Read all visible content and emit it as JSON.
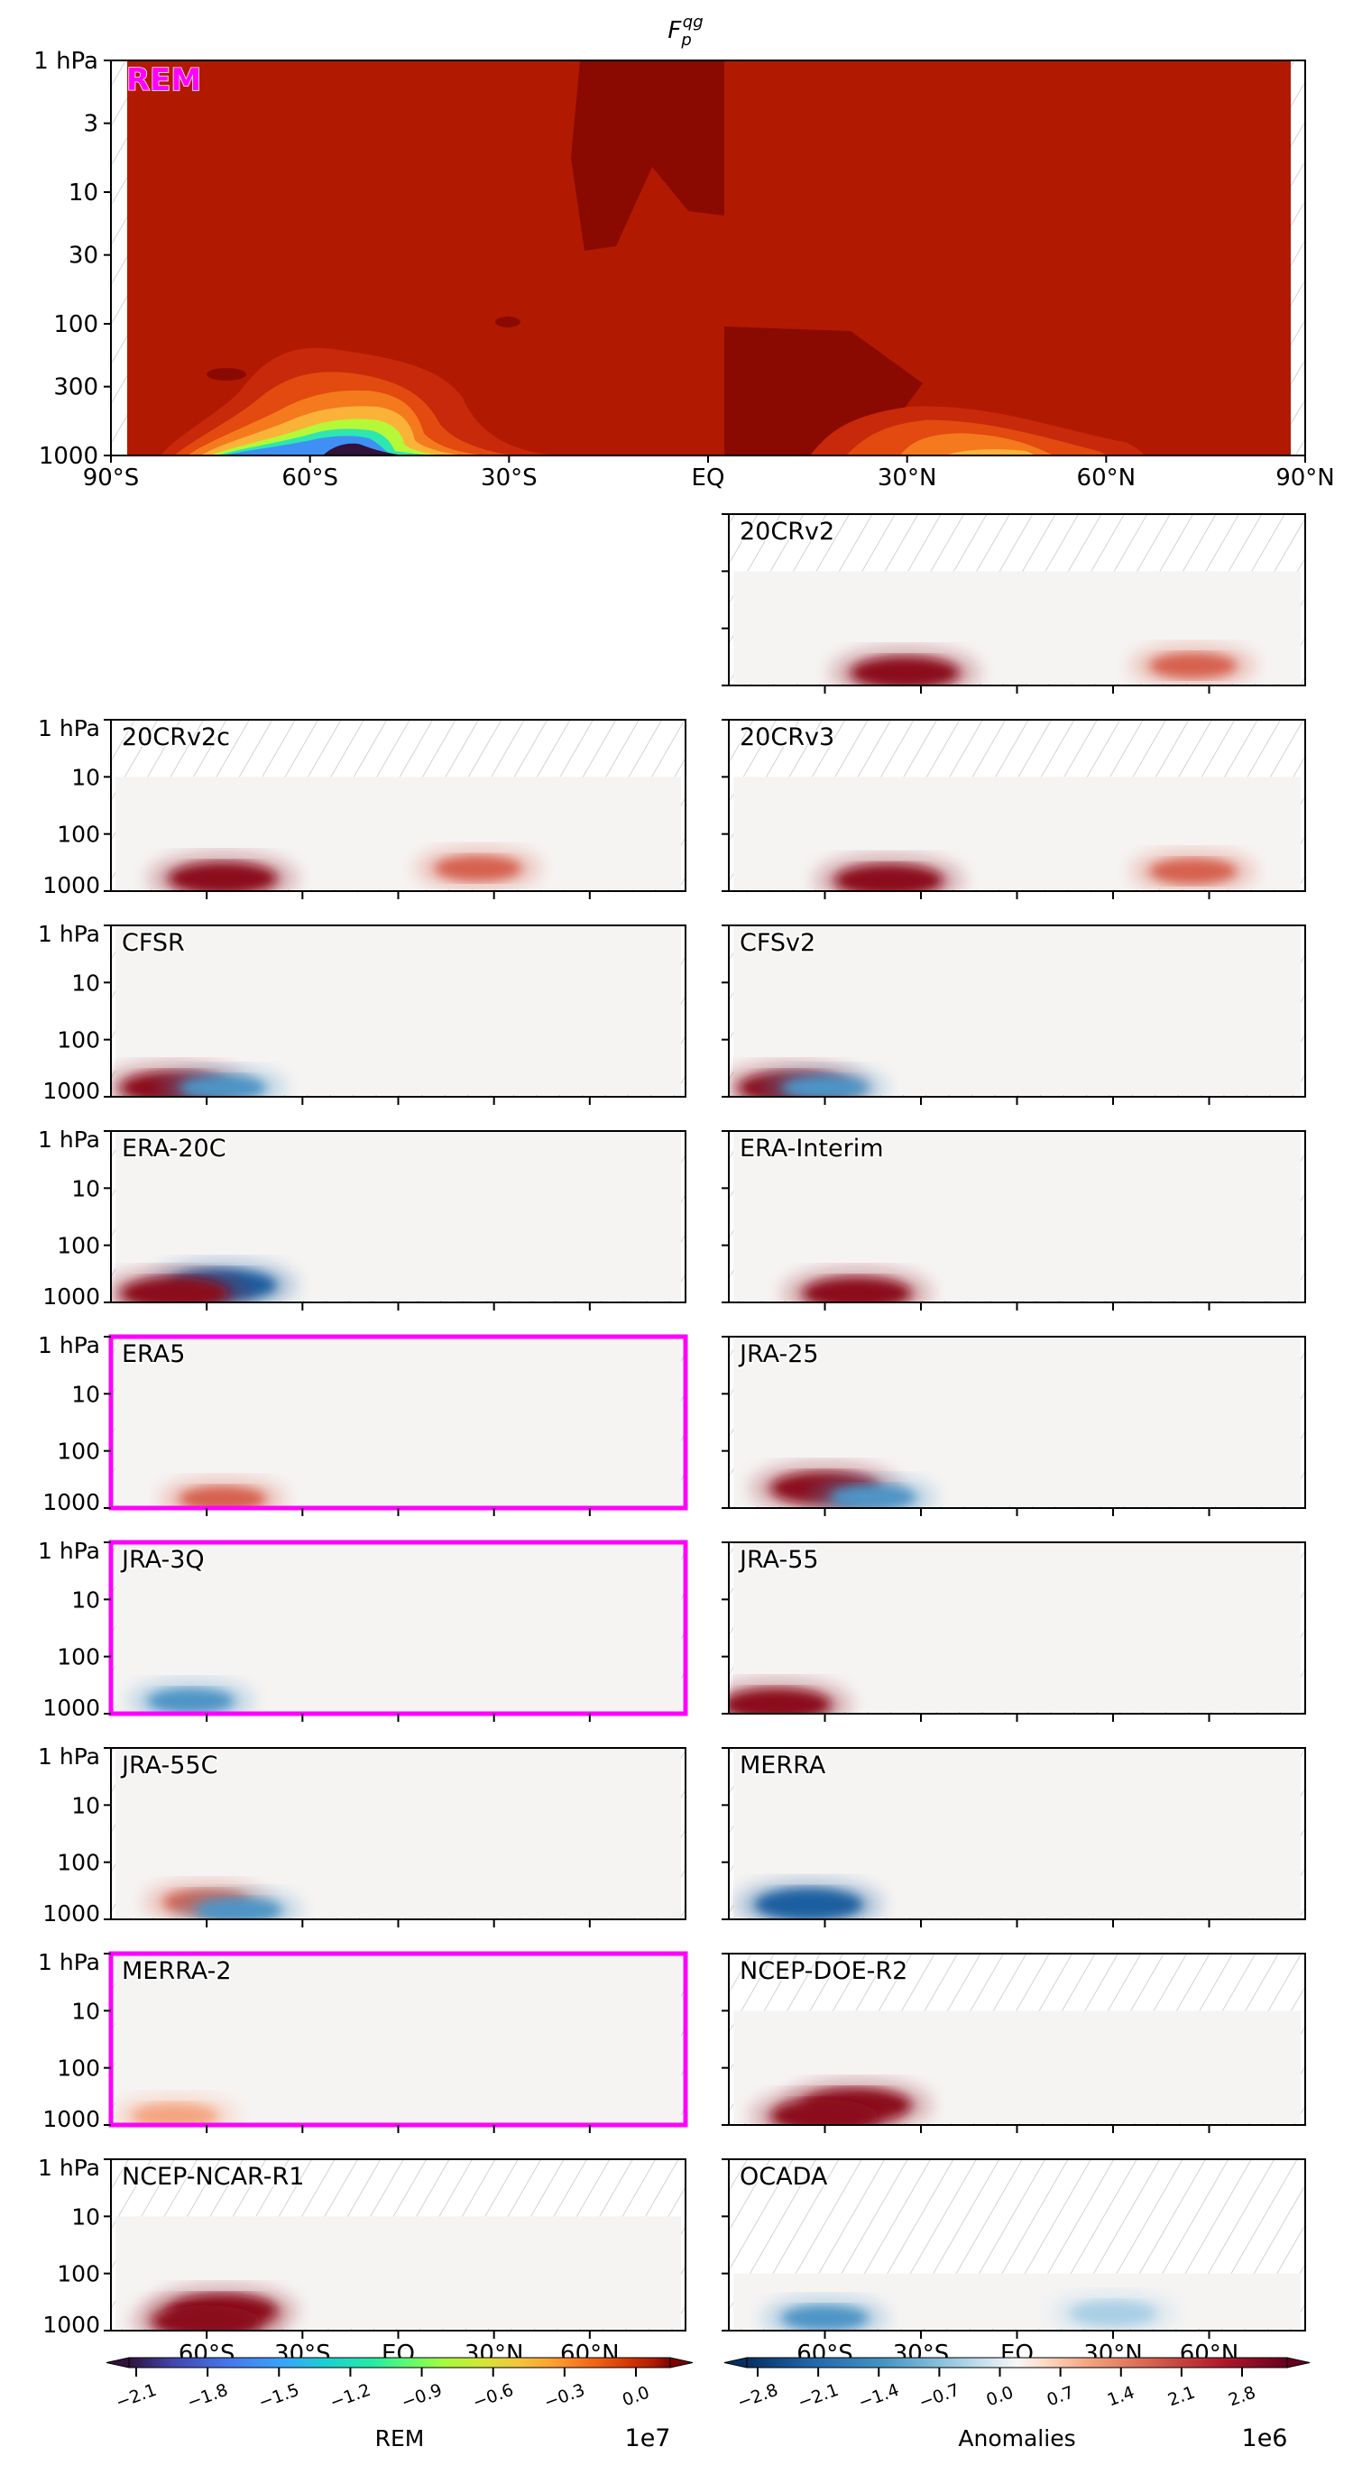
{
  "chart_data": {
    "type": "heatmap",
    "title": "F_p^qg",
    "title_main": "F",
    "title_sub": "p",
    "title_sup": "qg",
    "main_panel": {
      "label": "REM",
      "label_color": "#ff00ff",
      "xlim": [
        -90,
        90
      ],
      "ylim_hpa": [
        1000,
        1
      ],
      "x_ticks": [
        -90,
        -60,
        -30,
        0,
        30,
        60,
        90
      ],
      "x_tick_labels": [
        "90°S",
        "60°S",
        "30°S",
        "EQ",
        "30°N",
        "60°N",
        "90°N"
      ],
      "y_ticks": [
        1,
        3,
        10,
        30,
        100,
        300,
        1000
      ],
      "y_tick_labels": [
        "1 hPa",
        "3",
        "10",
        "30",
        "100",
        "300",
        "1000"
      ],
      "colormap": "turbo",
      "features": [
        {
          "desc": "strong negative minimum near surface",
          "lat": -48,
          "p": 900,
          "value": -21000000.0
        },
        {
          "desc": "secondary negative lobe",
          "lat": -70,
          "p": 850,
          "value": -15000000.0
        },
        {
          "desc": "weak NH negative lobe",
          "lat": 55,
          "p": 500,
          "value": -6000000.0
        }
      ]
    },
    "anomaly_panels": [
      {
        "name": "20CRv2",
        "highlighted": false,
        "top_hpa": 10,
        "features": [
          {
            "lat": -35,
            "p": 600,
            "sign": "positive",
            "strength": "strong"
          },
          {
            "lat": 55,
            "p": 450,
            "sign": "positive",
            "strength": "moderate"
          }
        ]
      },
      {
        "name": "20CRv2c",
        "highlighted": false,
        "top_hpa": 10,
        "features": [
          {
            "lat": -55,
            "p": 600,
            "sign": "positive",
            "strength": "strong"
          },
          {
            "lat": 25,
            "p": 400,
            "sign": "positive",
            "strength": "moderate"
          }
        ]
      },
      {
        "name": "20CRv3",
        "highlighted": false,
        "top_hpa": 10,
        "features": [
          {
            "lat": -40,
            "p": 650,
            "sign": "positive",
            "strength": "strong"
          },
          {
            "lat": 55,
            "p": 450,
            "sign": "positive",
            "strength": "moderate"
          }
        ]
      },
      {
        "name": "CFSR",
        "highlighted": false,
        "top_hpa": 1,
        "features": [
          {
            "lat": -70,
            "p": 900,
            "sign": "positive",
            "strength": "strong"
          },
          {
            "lat": -55,
            "p": 700,
            "sign": "negative",
            "strength": "moderate"
          }
        ]
      },
      {
        "name": "CFSv2",
        "highlighted": false,
        "top_hpa": 1,
        "features": [
          {
            "lat": -70,
            "p": 900,
            "sign": "positive",
            "strength": "strong"
          },
          {
            "lat": -60,
            "p": 700,
            "sign": "negative",
            "strength": "moderate"
          }
        ]
      },
      {
        "name": "ERA-20C",
        "highlighted": false,
        "top_hpa": 1,
        "features": [
          {
            "lat": -55,
            "p": 500,
            "sign": "negative",
            "strength": "strong"
          },
          {
            "lat": -70,
            "p": 900,
            "sign": "positive",
            "strength": "strong"
          }
        ]
      },
      {
        "name": "ERA-Interim",
        "highlighted": false,
        "top_hpa": 1,
        "features": [
          {
            "lat": -50,
            "p": 950,
            "sign": "positive",
            "strength": "strong"
          }
        ]
      },
      {
        "name": "ERA5",
        "highlighted": true,
        "top_hpa": 1,
        "features": [
          {
            "lat": -55,
            "p": 950,
            "sign": "positive",
            "strength": "moderate"
          }
        ]
      },
      {
        "name": "JRA-25",
        "highlighted": false,
        "top_hpa": 1,
        "features": [
          {
            "lat": -60,
            "p": 450,
            "sign": "positive",
            "strength": "strong"
          },
          {
            "lat": -45,
            "p": 650,
            "sign": "negative",
            "strength": "moderate"
          }
        ]
      },
      {
        "name": "JRA-3Q",
        "highlighted": true,
        "top_hpa": 1,
        "features": [
          {
            "lat": -65,
            "p": 600,
            "sign": "negative",
            "strength": "moderate"
          }
        ]
      },
      {
        "name": "JRA-55",
        "highlighted": false,
        "top_hpa": 1,
        "features": [
          {
            "lat": -75,
            "p": 950,
            "sign": "positive",
            "strength": "strong"
          }
        ]
      },
      {
        "name": "JRA-55C",
        "highlighted": false,
        "top_hpa": 1,
        "features": [
          {
            "lat": -60,
            "p": 500,
            "sign": "positive",
            "strength": "moderate"
          },
          {
            "lat": -50,
            "p": 900,
            "sign": "negative",
            "strength": "moderate"
          }
        ]
      },
      {
        "name": "MERRA",
        "highlighted": false,
        "top_hpa": 1,
        "features": [
          {
            "lat": -65,
            "p": 550,
            "sign": "negative",
            "strength": "strong"
          }
        ]
      },
      {
        "name": "MERRA-2",
        "highlighted": true,
        "top_hpa": 1,
        "features": [
          {
            "lat": -70,
            "p": 800,
            "sign": "positive",
            "strength": "weak"
          }
        ]
      },
      {
        "name": "NCEP-DOE-R2",
        "highlighted": false,
        "top_hpa": 10,
        "features": [
          {
            "lat": -50,
            "p": 450,
            "sign": "positive",
            "strength": "strong"
          },
          {
            "lat": -60,
            "p": 900,
            "sign": "positive",
            "strength": "strong"
          }
        ]
      },
      {
        "name": "NCEP-NCAR-R1",
        "highlighted": false,
        "top_hpa": 10,
        "features": [
          {
            "lat": -55,
            "p": 450,
            "sign": "positive",
            "strength": "strong"
          },
          {
            "lat": -60,
            "p": 900,
            "sign": "positive",
            "strength": "strong"
          }
        ]
      },
      {
        "name": "OCADA",
        "highlighted": false,
        "top_hpa": 100,
        "features": [
          {
            "lat": -60,
            "p": 600,
            "sign": "negative",
            "strength": "moderate"
          },
          {
            "lat": 30,
            "p": 500,
            "sign": "negative",
            "strength": "weak"
          }
        ]
      }
    ],
    "grid_y_tick_labels": [
      "1 hPa",
      "10",
      "100",
      "1000"
    ],
    "grid_x_tick_labels": [
      "60°S",
      "30°S",
      "EQ",
      "30°N",
      "60°N"
    ],
    "colorbars": [
      {
        "label": "REM",
        "scale": "1e7",
        "ticks": [
          "−2.1",
          "−1.8",
          "−1.5",
          "−1.2",
          "−0.9",
          "−0.6",
          "−0.3",
          "0.0"
        ],
        "range": [
          -2.1,
          0.0
        ],
        "colormap": "turbo"
      },
      {
        "label": "Anomalies",
        "scale": "1e6",
        "ticks": [
          "−2.8",
          "−2.1",
          "−1.4",
          "−0.7",
          "0.0",
          "0.7",
          "1.4",
          "2.1",
          "2.8"
        ],
        "range": [
          -3.2,
          3.2
        ],
        "colormap": "RdBu_r"
      }
    ],
    "highlight_color": "#ff00ff"
  }
}
